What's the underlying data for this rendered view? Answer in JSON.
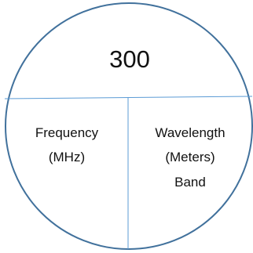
{
  "diagram": {
    "top_value": "300",
    "left_cell": {
      "lines": [
        "Frequency",
        "(MHz)"
      ]
    },
    "right_cell": {
      "lines": [
        "Wavelength",
        "(Meters)",
        "Band"
      ]
    }
  },
  "colors": {
    "stroke": "#41719c",
    "text": "#111111",
    "background": "#ffffff"
  }
}
